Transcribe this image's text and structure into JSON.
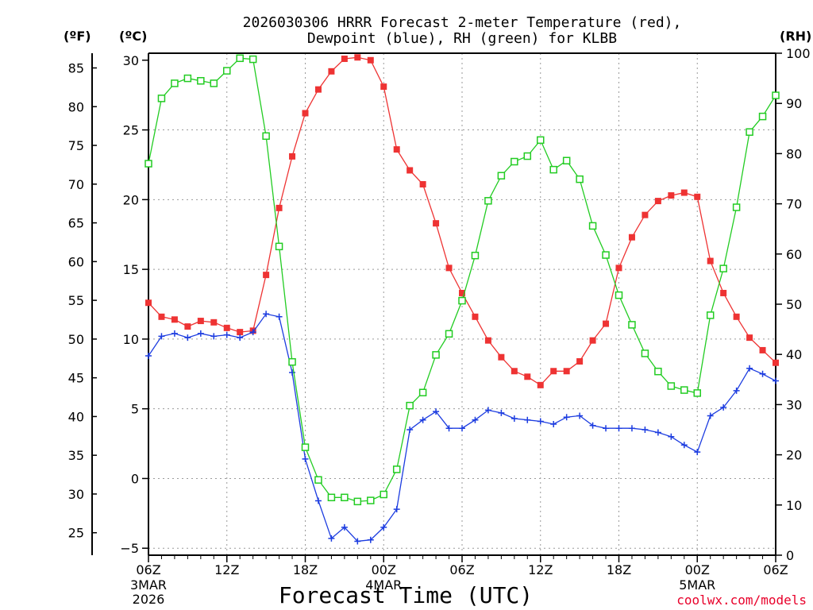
{
  "chart_data": {
    "type": "line",
    "title_line1": "2026030306 HRRR Forecast 2-meter Temperature (red),",
    "title_line2": "Dewpoint (blue), RH (green) for KLBB",
    "xlabel": "Forecast Time (UTC)",
    "credit": "coolwx.com/models",
    "left_unit_f": "(ºF)",
    "left_unit_c": "(ºC)",
    "right_unit": "(RH)",
    "grid": true,
    "x_hours": [
      0,
      1,
      2,
      3,
      4,
      5,
      6,
      7,
      8,
      9,
      10,
      11,
      12,
      13,
      14,
      15,
      16,
      17,
      18,
      19,
      20,
      21,
      22,
      23,
      24,
      25,
      26,
      27,
      28,
      29,
      30,
      31,
      32,
      33,
      34,
      35,
      36,
      37,
      38,
      39,
      40,
      41,
      42,
      43,
      44,
      45,
      46,
      47,
      48
    ],
    "x_ticks": [
      {
        "hour": 0,
        "label": "06Z",
        "sub1": "3MAR",
        "sub2": "2026"
      },
      {
        "hour": 6,
        "label": "12Z",
        "sub1": "",
        "sub2": ""
      },
      {
        "hour": 12,
        "label": "18Z",
        "sub1": "",
        "sub2": ""
      },
      {
        "hour": 18,
        "label": "00Z",
        "sub1": "4MAR",
        "sub2": ""
      },
      {
        "hour": 24,
        "label": "06Z",
        "sub1": "",
        "sub2": ""
      },
      {
        "hour": 30,
        "label": "12Z",
        "sub1": "",
        "sub2": ""
      },
      {
        "hour": 36,
        "label": "18Z",
        "sub1": "",
        "sub2": ""
      },
      {
        "hour": 42,
        "label": "00Z",
        "sub1": "5MAR",
        "sub2": ""
      },
      {
        "hour": 48,
        "label": "06Z",
        "sub1": "",
        "sub2": ""
      }
    ],
    "xlim": [
      0,
      48
    ],
    "c_range": [
      -5.5,
      30.5
    ],
    "c_ticks": [
      -5,
      0,
      5,
      10,
      15,
      20,
      25,
      30
    ],
    "f_ticks": [
      25,
      30,
      35,
      40,
      45,
      50,
      55,
      60,
      65,
      70,
      75,
      80,
      85
    ],
    "rh_range": [
      0,
      100
    ],
    "rh_ticks": [
      0,
      10,
      20,
      30,
      40,
      50,
      60,
      70,
      80,
      90,
      100
    ],
    "series": [
      {
        "name": "Temperature",
        "axis": "C",
        "color": "#ee3333",
        "marker": "filled-square",
        "values": [
          12.6,
          11.6,
          11.4,
          10.9,
          11.3,
          11.2,
          10.8,
          10.5,
          10.6,
          14.6,
          19.4,
          23.1,
          26.2,
          27.9,
          29.2,
          30.1,
          30.2,
          30.0,
          28.1,
          23.6,
          22.1,
          21.1,
          18.3,
          15.1,
          13.3,
          11.6,
          9.9,
          8.7,
          7.7,
          7.3,
          6.7,
          7.7,
          7.7,
          8.4,
          9.9,
          11.1,
          15.1,
          17.3,
          18.9,
          19.9,
          20.3,
          20.5,
          20.2,
          15.6,
          13.3,
          11.6,
          10.1,
          9.2,
          8.3
        ]
      },
      {
        "name": "Dewpoint",
        "axis": "C",
        "color": "#1c3ce0",
        "marker": "plus",
        "values": [
          8.8,
          10.2,
          10.4,
          10.1,
          10.4,
          10.2,
          10.3,
          10.1,
          10.5,
          11.8,
          11.6,
          7.6,
          1.4,
          -1.6,
          -4.3,
          -3.5,
          -4.5,
          -4.4,
          -3.5,
          -2.2,
          3.5,
          4.2,
          4.8,
          3.6,
          3.6,
          4.2,
          4.9,
          4.7,
          4.3,
          4.2,
          4.1,
          3.9,
          4.4,
          4.5,
          3.8,
          3.6,
          3.6,
          3.6,
          3.5,
          3.3,
          3.0,
          2.4,
          1.9,
          4.5,
          5.1,
          6.3,
          7.9,
          7.5,
          7.0
        ]
      },
      {
        "name": "RH",
        "axis": "RH",
        "color": "#22cc22",
        "marker": "open-square",
        "values": [
          78,
          91,
          94,
          95,
          94.5,
          94,
          96.5,
          99,
          98.8,
          83.5,
          61.5,
          38.5,
          21.5,
          15,
          11.5,
          11.5,
          10.7,
          10.9,
          12.1,
          17.1,
          29.8,
          32.4,
          39.9,
          44.1,
          50.7,
          59.7,
          70.6,
          75.6,
          78.4,
          79.5,
          82.7,
          76.8,
          78.6,
          74.9,
          65.6,
          59.8,
          51.8,
          45.9,
          40.2,
          36.6,
          33.7,
          32.9,
          32.3,
          47.8,
          57.1,
          69.3,
          84.3,
          87.4,
          91.6
        ]
      }
    ]
  }
}
